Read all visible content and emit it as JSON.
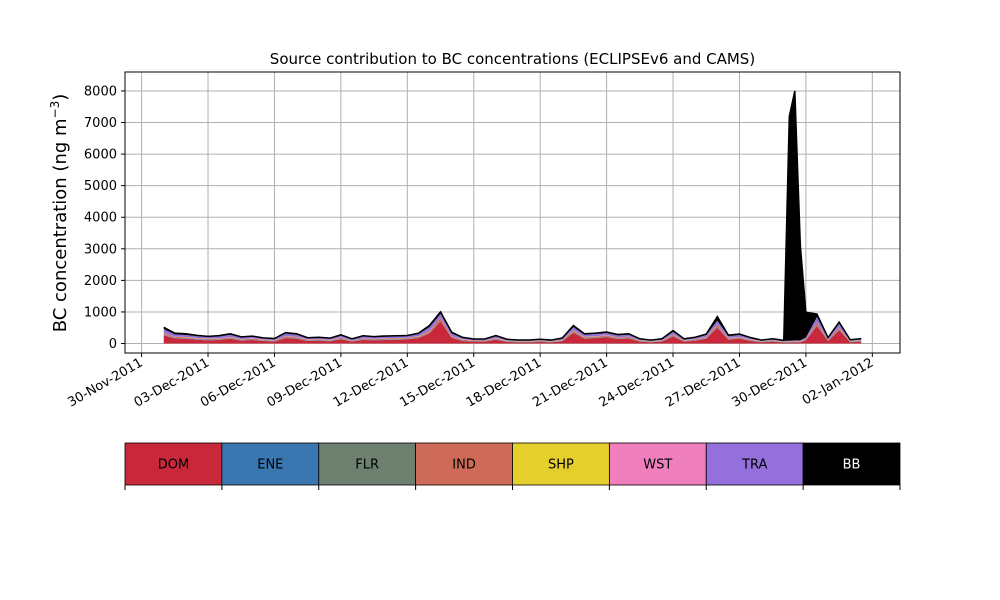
{
  "chart_data": {
    "type": "area",
    "title": "Source contribution to BC concentrations (ECLIPSEv6 and CAMS)",
    "ylabel_prefix": "BC concentration (ng m",
    "ylabel_exp": "−3",
    "ylabel_suffix": ")",
    "xlabel": "",
    "ylim": [
      -300,
      8600
    ],
    "xlim": [
      "2011-11-29T06:00",
      "2012-01-03T06:00"
    ],
    "grid": true,
    "y_ticks": [
      0,
      1000,
      2000,
      3000,
      4000,
      5000,
      6000,
      7000,
      8000
    ],
    "y_tick_labels": [
      "0",
      "1000",
      "2000",
      "3000",
      "4000",
      "5000",
      "6000",
      "7000",
      "8000"
    ],
    "x_ticks": [
      "2011-11-30",
      "2011-12-03",
      "2011-12-06",
      "2011-12-09",
      "2011-12-12",
      "2011-12-15",
      "2011-12-18",
      "2011-12-21",
      "2011-12-24",
      "2011-12-27",
      "2011-12-30",
      "2012-01-02"
    ],
    "x_tick_labels": [
      "30-Nov-2011",
      "03-Dec-2011",
      "06-Dec-2011",
      "09-Dec-2011",
      "12-Dec-2011",
      "15-Dec-2011",
      "18-Dec-2011",
      "21-Dec-2011",
      "24-Dec-2011",
      "27-Dec-2011",
      "30-Dec-2011",
      "02-Jan-2012"
    ],
    "x": [
      "2011-12-01T00:00",
      "2011-12-01T12:00",
      "2011-12-02T00:00",
      "2011-12-02T12:00",
      "2011-12-03T00:00",
      "2011-12-03T12:00",
      "2011-12-04T00:00",
      "2011-12-04T12:00",
      "2011-12-05T00:00",
      "2011-12-05T12:00",
      "2011-12-06T00:00",
      "2011-12-06T12:00",
      "2011-12-07T00:00",
      "2011-12-07T12:00",
      "2011-12-08T00:00",
      "2011-12-08T12:00",
      "2011-12-09T00:00",
      "2011-12-09T12:00",
      "2011-12-10T00:00",
      "2011-12-10T12:00",
      "2011-12-11T00:00",
      "2011-12-11T12:00",
      "2011-12-12T00:00",
      "2011-12-12T12:00",
      "2011-12-13T00:00",
      "2011-12-13T12:00",
      "2011-12-14T00:00",
      "2011-12-14T12:00",
      "2011-12-15T00:00",
      "2011-12-15T12:00",
      "2011-12-16T00:00",
      "2011-12-16T12:00",
      "2011-12-17T00:00",
      "2011-12-17T12:00",
      "2011-12-18T00:00",
      "2011-12-18T12:00",
      "2011-12-19T00:00",
      "2011-12-19T12:00",
      "2011-12-20T00:00",
      "2011-12-20T12:00",
      "2011-12-21T00:00",
      "2011-12-21T12:00",
      "2011-12-22T00:00",
      "2011-12-22T12:00",
      "2011-12-23T00:00",
      "2011-12-23T12:00",
      "2011-12-24T00:00",
      "2011-12-24T12:00",
      "2011-12-25T00:00",
      "2011-12-25T12:00",
      "2011-12-26T00:00",
      "2011-12-26T12:00",
      "2011-12-27T00:00",
      "2011-12-27T12:00",
      "2011-12-28T00:00",
      "2011-12-28T12:00",
      "2011-12-29T00:00",
      "2011-12-29T06:00",
      "2011-12-29T12:00",
      "2011-12-29T18:00",
      "2011-12-30T00:00",
      "2011-12-30T12:00",
      "2011-12-31T00:00",
      "2011-12-31T12:00",
      "2012-01-01T00:00",
      "2012-01-01T12:00"
    ],
    "series": [
      {
        "name": "DOM",
        "color": "#c9283a",
        "values": [
          260,
          160,
          150,
          120,
          100,
          110,
          150,
          90,
          110,
          80,
          60,
          170,
          150,
          80,
          90,
          70,
          130,
          60,
          110,
          100,
          110,
          120,
          130,
          170,
          320,
          700,
          180,
          80,
          60,
          60,
          120,
          50,
          40,
          40,
          50,
          40,
          70,
          340,
          150,
          170,
          200,
          140,
          160,
          60,
          40,
          60,
          220,
          60,
          90,
          150,
          500,
          120,
          150,
          80,
          40,
          60,
          30,
          30,
          40,
          40,
          100,
          560,
          80,
          420,
          40,
          60
        ]
      },
      {
        "name": "ENE",
        "color": "#3a76b0",
        "values": [
          10,
          10,
          10,
          10,
          10,
          10,
          10,
          10,
          10,
          10,
          10,
          10,
          10,
          10,
          10,
          10,
          10,
          10,
          10,
          10,
          10,
          10,
          10,
          10,
          10,
          10,
          10,
          10,
          10,
          10,
          10,
          10,
          10,
          10,
          10,
          10,
          10,
          10,
          10,
          10,
          10,
          10,
          10,
          10,
          10,
          10,
          10,
          10,
          10,
          10,
          10,
          10,
          10,
          10,
          10,
          10,
          10,
          10,
          10,
          10,
          10,
          10,
          10,
          10,
          10,
          10
        ]
      },
      {
        "name": "FLR",
        "color": "#6d8070",
        "values": [
          15,
          10,
          10,
          10,
          10,
          10,
          10,
          10,
          10,
          10,
          10,
          10,
          10,
          10,
          10,
          10,
          10,
          10,
          10,
          10,
          10,
          10,
          10,
          10,
          10,
          15,
          10,
          10,
          10,
          10,
          10,
          10,
          10,
          10,
          10,
          10,
          10,
          10,
          10,
          10,
          10,
          10,
          10,
          10,
          10,
          10,
          10,
          10,
          10,
          10,
          15,
          10,
          10,
          10,
          10,
          10,
          10,
          10,
          10,
          10,
          10,
          15,
          10,
          10,
          10,
          10
        ]
      },
      {
        "name": "IND",
        "color": "#cd6a58",
        "values": [
          40,
          30,
          30,
          25,
          25,
          25,
          30,
          20,
          25,
          20,
          15,
          35,
          30,
          20,
          20,
          15,
          30,
          15,
          25,
          20,
          25,
          25,
          25,
          30,
          50,
          90,
          30,
          20,
          15,
          15,
          25,
          15,
          10,
          10,
          15,
          10,
          20,
          50,
          30,
          30,
          35,
          30,
          30,
          15,
          10,
          15,
          40,
          15,
          20,
          30,
          70,
          25,
          30,
          20,
          10,
          15,
          10,
          10,
          10,
          10,
          20,
          80,
          15,
          60,
          10,
          15
        ]
      },
      {
        "name": "SHP",
        "color": "#e5cf2d",
        "values": [
          5,
          5,
          5,
          5,
          5,
          5,
          5,
          5,
          5,
          5,
          5,
          5,
          5,
          5,
          5,
          5,
          5,
          5,
          5,
          5,
          5,
          5,
          5,
          5,
          5,
          5,
          5,
          5,
          5,
          5,
          5,
          5,
          5,
          5,
          5,
          5,
          5,
          5,
          5,
          5,
          5,
          5,
          5,
          5,
          5,
          5,
          5,
          5,
          5,
          5,
          5,
          5,
          5,
          5,
          5,
          5,
          5,
          5,
          5,
          5,
          5,
          5,
          5,
          5,
          5,
          5
        ]
      },
      {
        "name": "WST",
        "color": "#f07fbe",
        "values": [
          5,
          5,
          5,
          5,
          5,
          5,
          5,
          5,
          5,
          5,
          5,
          5,
          5,
          5,
          5,
          5,
          5,
          5,
          5,
          5,
          5,
          5,
          5,
          5,
          5,
          5,
          5,
          5,
          5,
          5,
          5,
          5,
          5,
          5,
          5,
          5,
          5,
          5,
          5,
          5,
          5,
          5,
          5,
          5,
          5,
          5,
          5,
          5,
          5,
          5,
          5,
          5,
          5,
          5,
          5,
          5,
          5,
          5,
          5,
          5,
          5,
          5,
          5,
          5,
          5,
          5
        ]
      },
      {
        "name": "TRA",
        "color": "#9370db",
        "values": [
          120,
          70,
          60,
          60,
          50,
          60,
          70,
          50,
          50,
          40,
          40,
          80,
          70,
          40,
          40,
          40,
          60,
          30,
          60,
          50,
          50,
          50,
          50,
          70,
          120,
          120,
          80,
          40,
          30,
          30,
          50,
          30,
          20,
          20,
          30,
          20,
          40,
          100,
          70,
          70,
          70,
          60,
          60,
          30,
          20,
          30,
          80,
          30,
          40,
          60,
          120,
          60,
          60,
          40,
          20,
          30,
          20,
          20,
          20,
          20,
          40,
          160,
          40,
          120,
          20,
          30
        ]
      },
      {
        "name": "BB",
        "color": "#000000",
        "values": [
          60,
          40,
          40,
          25,
          20,
          25,
          30,
          20,
          20,
          10,
          15,
          30,
          30,
          15,
          20,
          15,
          25,
          15,
          20,
          20,
          25,
          20,
          20,
          25,
          50,
          60,
          40,
          25,
          10,
          10,
          30,
          10,
          10,
          10,
          10,
          10,
          15,
          50,
          30,
          30,
          30,
          25,
          30,
          15,
          10,
          15,
          40,
          15,
          20,
          30,
          130,
          30,
          30,
          20,
          10,
          15,
          10,
          7100,
          7900,
          3000,
          800,
          100,
          20,
          50,
          20,
          20
        ]
      }
    ],
    "legend": [
      "DOM",
      "ENE",
      "FLR",
      "IND",
      "SHP",
      "WST",
      "TRA",
      "BB"
    ],
    "legend_placement": "bottom",
    "legend_text_colors": [
      "#000000",
      "#000000",
      "#000000",
      "#000000",
      "#000000",
      "#000000",
      "#000000",
      "#ffffff"
    ],
    "colors": {
      "grid": "#b0b0b0",
      "total_line": "#000000",
      "background": "#ffffff"
    }
  }
}
